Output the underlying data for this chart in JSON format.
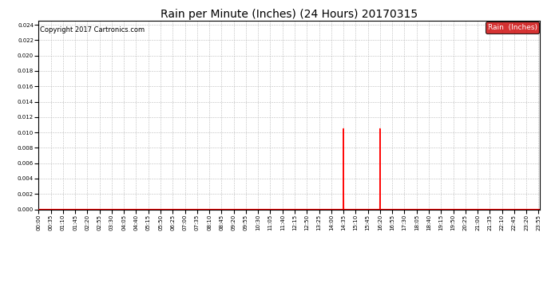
{
  "title": "Rain per Minute (Inches) (24 Hours) 20170315",
  "copyright_text": "Copyright 2017 Cartronics.com",
  "legend_label": "Rain  (Inches)",
  "legend_bg": "#cc0000",
  "legend_text_color": "#ffffff",
  "ylim": [
    0.0,
    0.0245
  ],
  "yticks": [
    0.0,
    0.002,
    0.004,
    0.006,
    0.008,
    0.01,
    0.012,
    0.014,
    0.016,
    0.018,
    0.02,
    0.022,
    0.024
  ],
  "spike1_time": 875,
  "spike1_value": 0.0105,
  "spike2_time": 980,
  "spike2_value": 0.0105,
  "line_color": "#ff0000",
  "bg_color": "#ffffff",
  "grid_color": "#bbbbbb",
  "total_minutes": 1440,
  "tick_interval": 35,
  "title_fontsize": 10,
  "copyright_fontsize": 6,
  "legend_fontsize": 6.5,
  "tick_fontsize": 5.0
}
